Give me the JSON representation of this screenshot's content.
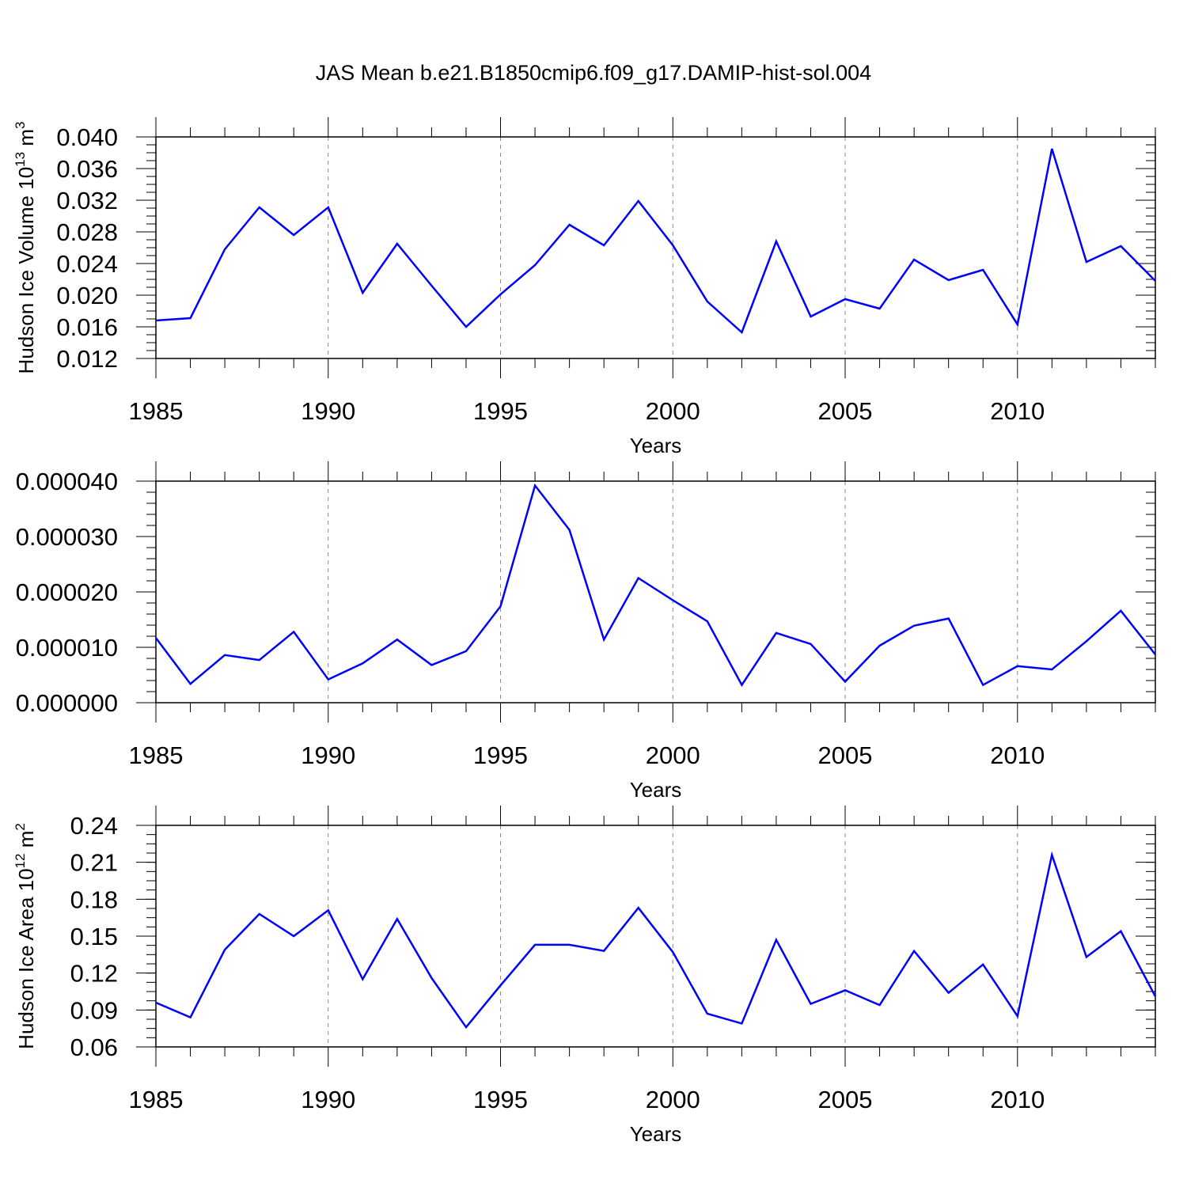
{
  "title": "JAS Mean b.e21.B1850cmip6.f09_g17.DAMIP-hist-sol.004",
  "colors": {
    "line": "#0000ff",
    "axis": "#000000",
    "grid": "#888888"
  },
  "chart_data": [
    {
      "type": "line",
      "ylabel_main": "Hudson Ice Volume 10",
      "ylabel_sup": "13",
      "ylabel_unit": "m",
      "ylabel_unit_sup": "3",
      "xlabel": "Years",
      "xlim": [
        1985,
        2014
      ],
      "ylim": [
        0.012,
        0.04
      ],
      "xticks": [
        "1985",
        "1990",
        "1995",
        "2000",
        "2005",
        "2010"
      ],
      "yticks": [
        "0.012",
        "0.016",
        "0.020",
        "0.024",
        "0.028",
        "0.032",
        "0.036",
        "0.040"
      ],
      "x": [
        1985,
        1986,
        1987,
        1988,
        1989,
        1990,
        1991,
        1992,
        1993,
        1994,
        1995,
        1996,
        1997,
        1998,
        1999,
        2000,
        2001,
        2002,
        2003,
        2004,
        2005,
        2006,
        2007,
        2008,
        2009,
        2010,
        2011,
        2012,
        2013,
        2014
      ],
      "values": [
        0.0168,
        0.0171,
        0.0258,
        0.0311,
        0.0276,
        0.0311,
        0.0203,
        0.0265,
        0.0212,
        0.016,
        0.0201,
        0.0238,
        0.0289,
        0.0263,
        0.0319,
        0.0263,
        0.0192,
        0.0153,
        0.0268,
        0.0173,
        0.0195,
        0.0183,
        0.0245,
        0.0219,
        0.0232,
        0.0163,
        0.0385,
        0.0242,
        0.0262,
        0.0218
      ]
    },
    {
      "type": "line",
      "xlabel": "Years",
      "xlim": [
        1985,
        2014
      ],
      "ylim": [
        0,
        4e-05
      ],
      "xticks": [
        "1985",
        "1990",
        "1995",
        "2000",
        "2005",
        "2010"
      ],
      "yticks": [
        "0.000000",
        "0.000010",
        "0.000020",
        "0.000030",
        "0.000040"
      ],
      "x": [
        1985,
        1986,
        1987,
        1988,
        1989,
        1990,
        1991,
        1992,
        1993,
        1994,
        1995,
        1996,
        1997,
        1998,
        1999,
        2000,
        2001,
        2002,
        2003,
        2004,
        2005,
        2006,
        2007,
        2008,
        2009,
        2010,
        2011,
        2012,
        2013,
        2014
      ],
      "values": [
        1.17e-05,
        3.4e-06,
        8.6e-06,
        7.7e-06,
        1.28e-05,
        4.2e-06,
        7.1e-06,
        1.14e-05,
        6.8e-06,
        9.3e-06,
        1.74e-05,
        3.92e-05,
        3.12e-05,
        1.14e-05,
        2.25e-05,
        1.85e-05,
        1.47e-05,
        3.2e-06,
        1.26e-05,
        1.06e-05,
        3.8e-06,
        1.03e-05,
        1.39e-05,
        1.52e-05,
        3.2e-06,
        6.6e-06,
        6e-06,
        1.11e-05,
        1.66e-05,
        8.7e-06
      ]
    },
    {
      "type": "line",
      "ylabel_main": "Hudson Ice Area 10",
      "ylabel_sup": "12",
      "ylabel_unit": "m",
      "ylabel_unit_sup": "2",
      "xlabel": "Years",
      "xlim": [
        1985,
        2014
      ],
      "ylim": [
        0.06,
        0.24
      ],
      "xticks": [
        "1985",
        "1990",
        "1995",
        "2000",
        "2005",
        "2010"
      ],
      "yticks": [
        "0.06",
        "0.09",
        "0.12",
        "0.15",
        "0.18",
        "0.21",
        "0.24"
      ],
      "x": [
        1985,
        1986,
        1987,
        1988,
        1989,
        1990,
        1991,
        1992,
        1993,
        1994,
        1995,
        1996,
        1997,
        1998,
        1999,
        2000,
        2001,
        2002,
        2003,
        2004,
        2005,
        2006,
        2007,
        2008,
        2009,
        2010,
        2011,
        2012,
        2013,
        2014
      ],
      "values": [
        0.096,
        0.084,
        0.139,
        0.168,
        0.15,
        0.171,
        0.115,
        0.164,
        0.116,
        0.076,
        0.11,
        0.143,
        0.143,
        0.138,
        0.173,
        0.137,
        0.087,
        0.079,
        0.147,
        0.095,
        0.106,
        0.094,
        0.138,
        0.104,
        0.127,
        0.085,
        0.216,
        0.133,
        0.154,
        0.101
      ]
    }
  ]
}
